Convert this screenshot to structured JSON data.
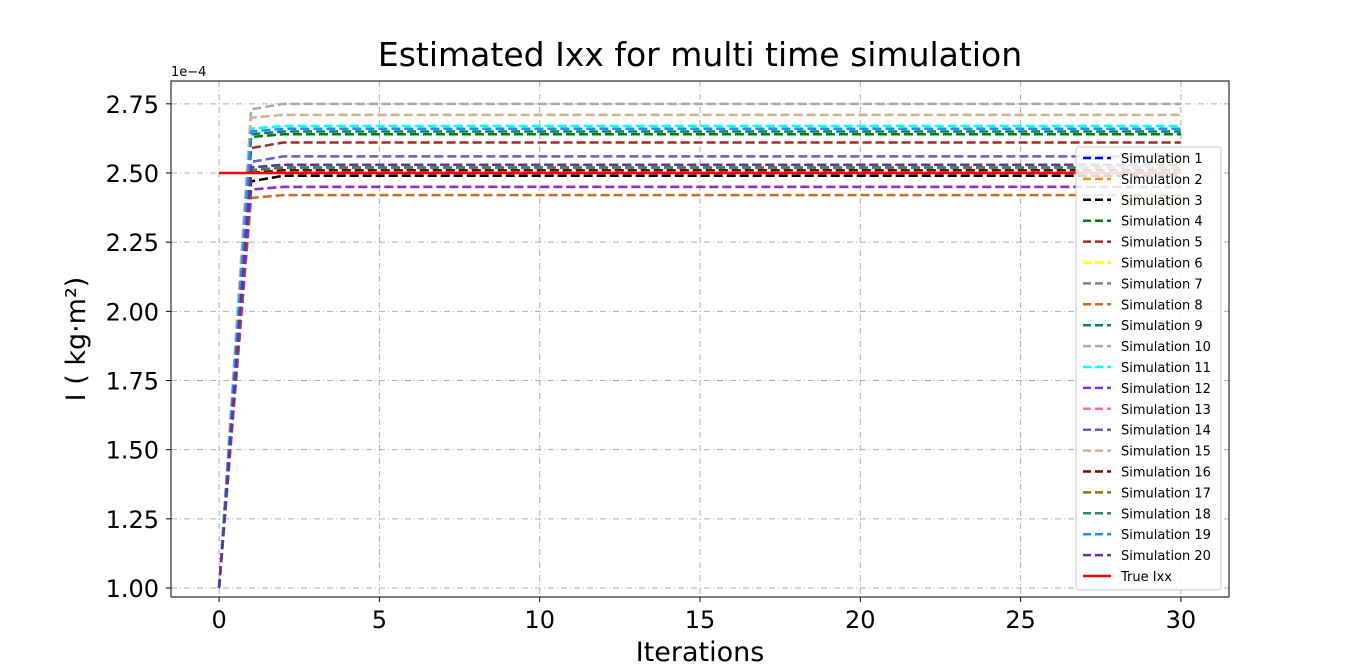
{
  "chart_data": {
    "type": "line",
    "title": "Estimated Ixx for multi time simulation",
    "xlabel": "Iterations",
    "ylabel": "I ( kg·m²)",
    "y_offset_label": "1e−4",
    "xlim": [
      -1.5,
      31.5
    ],
    "ylim": [
      0.9675,
      2.8325
    ],
    "x_ticks": [
      0,
      5,
      10,
      15,
      20,
      25,
      30
    ],
    "x_tick_labels": [
      "0",
      "5",
      "10",
      "15",
      "20",
      "25",
      "30"
    ],
    "y_ticks": [
      1.0,
      1.25,
      1.5,
      1.75,
      2.0,
      2.25,
      2.5,
      2.75
    ],
    "y_tick_labels": [
      "1.00",
      "1.25",
      "1.50",
      "1.75",
      "2.00",
      "2.25",
      "2.50",
      "2.75"
    ],
    "grid": true,
    "legend_position": "right",
    "start_value": 1.0,
    "x_end": 30,
    "series": [
      {
        "name": "Simulation 1",
        "color": "#0000ff",
        "v1": 2.51,
        "final": 2.52
      },
      {
        "name": "Simulation 2",
        "color": "#ff8c00",
        "v1": 2.44,
        "final": 2.45
      },
      {
        "name": "Simulation 3",
        "color": "#000000",
        "v1": 2.47,
        "final": 2.49
      },
      {
        "name": "Simulation 4",
        "color": "#008000",
        "v1": 2.63,
        "final": 2.64
      },
      {
        "name": "Simulation 5",
        "color": "#a52a2a",
        "v1": 2.59,
        "final": 2.61
      },
      {
        "name": "Simulation 6",
        "color": "#ffff00",
        "v1": 2.66,
        "final": 2.67
      },
      {
        "name": "Simulation 7",
        "color": "#808080",
        "v1": 2.52,
        "final": 2.53
      },
      {
        "name": "Simulation 8",
        "color": "#d2691e",
        "v1": 2.41,
        "final": 2.42
      },
      {
        "name": "Simulation 9",
        "color": "#008080",
        "v1": 2.64,
        "final": 2.65
      },
      {
        "name": "Simulation 10",
        "color": "#a9a9a9",
        "v1": 2.73,
        "final": 2.75
      },
      {
        "name": "Simulation 11",
        "color": "#00ffff",
        "v1": 2.66,
        "final": 2.67
      },
      {
        "name": "Simulation 12",
        "color": "#8a2be2",
        "v1": 2.44,
        "final": 2.45
      },
      {
        "name": "Simulation 13",
        "color": "#ff69b4",
        "v1": 2.5,
        "final": 2.51
      },
      {
        "name": "Simulation 14",
        "color": "#6a5acd",
        "v1": 2.54,
        "final": 2.56
      },
      {
        "name": "Simulation 15",
        "color": "#d2b48c",
        "v1": 2.7,
        "final": 2.71
      },
      {
        "name": "Simulation 16",
        "color": "#800000",
        "v1": 2.5,
        "final": 2.51
      },
      {
        "name": "Simulation 17",
        "color": "#808000",
        "v1": 2.52,
        "final": 2.53
      },
      {
        "name": "Simulation 18",
        "color": "#2e8b57",
        "v1": 2.51,
        "final": 2.52
      },
      {
        "name": "Simulation 19",
        "color": "#1e90ff",
        "v1": 2.65,
        "final": 2.66
      },
      {
        "name": "Simulation 20",
        "color": "#663399",
        "v1": 2.52,
        "final": 2.53
      }
    ],
    "reference": {
      "name": "True Ixx",
      "color": "#ff0000",
      "value": 2.5,
      "x": [
        0,
        30
      ]
    }
  }
}
